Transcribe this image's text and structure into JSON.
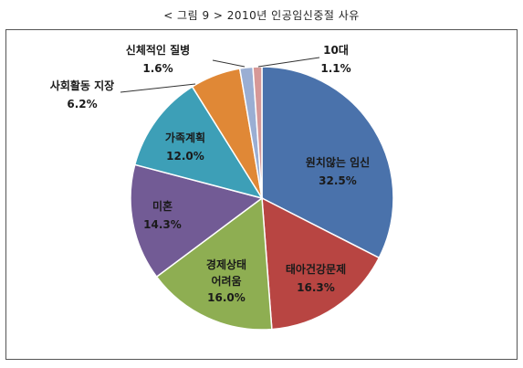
{
  "caption": "< 그림 9 > 2010년 인공임신중절 사유",
  "chart_data": {
    "type": "pie",
    "title": "",
    "slices": [
      {
        "label": "원치않는 임신",
        "value": 32.5,
        "pct": "32.5%",
        "color": "#4a72ab"
      },
      {
        "label": "태아건강문제",
        "value": 16.3,
        "pct": "16.3%",
        "color": "#b84542"
      },
      {
        "label": "경제상태 어려움",
        "value": 16.0,
        "pct": "16.0%",
        "color": "#8eae52"
      },
      {
        "label": "미혼",
        "value": 14.3,
        "pct": "14.3%",
        "color": "#725b95"
      },
      {
        "label": "가족계획",
        "value": 12.0,
        "pct": "12.0%",
        "color": "#3d9fb7"
      },
      {
        "label": "사회활동 지장",
        "value": 6.2,
        "pct": "6.2%",
        "color": "#e08836"
      },
      {
        "label": "신체적인 질병",
        "value": 1.6,
        "pct": "1.6%",
        "color": "#9aaed3"
      },
      {
        "label": "10대",
        "value": 1.1,
        "pct": "1.1%",
        "color": "#d69897"
      }
    ]
  }
}
